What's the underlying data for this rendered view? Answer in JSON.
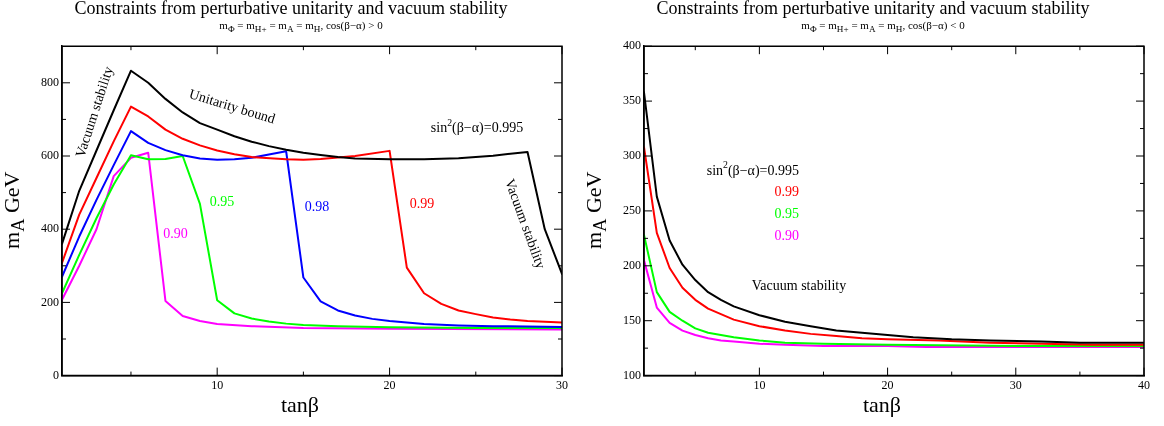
{
  "chart_data": [
    {
      "type": "line",
      "title": "Constraints from perturbative unitarity and vacuum stability",
      "subtitle": "m$_{Φ}$ = m$_{H+}$ = m$_{A}$ = m$_{H}$,  cos(β−α) > 0",
      "xlabel": "tanβ",
      "ylabel": "m$_{A}$ GeV",
      "xlim": [
        1,
        30
      ],
      "xticks": [
        {
          "value": 5,
          "label": null
        },
        10,
        {
          "value": 15,
          "label": null
        },
        20,
        {
          "value": 25,
          "label": null
        },
        30
      ],
      "ylim": [
        0,
        900
      ],
      "yticks": [
        0,
        {
          "value": 100,
          "label": null
        },
        200,
        {
          "value": 300,
          "label": null
        },
        400,
        {
          "value": 500,
          "label": null
        },
        600,
        {
          "value": 700,
          "label": null
        },
        800
      ],
      "annotations": [
        "Vacuum stability",
        "Unitarity bound",
        "Vacuum stability"
      ],
      "series": [
        {
          "name": "sin$^{2}$(β−α)=0.995",
          "color": "#000000",
          "x": [
            1,
            2,
            3,
            4,
            5,
            6,
            7,
            8,
            9,
            10,
            11,
            12,
            13,
            14,
            15,
            16,
            17,
            18,
            20,
            22,
            24,
            26,
            28,
            29,
            30
          ],
          "values": [
            360,
            505,
            615,
            725,
            833,
            800,
            756,
            719,
            690,
            672,
            654,
            639,
            627,
            617,
            609,
            603,
            597,
            593,
            591,
            591,
            594,
            601,
            611,
            400,
            278
          ]
        },
        {
          "name": "0.99",
          "color": "#ff0000",
          "x": [
            1,
            2,
            3,
            4,
            5,
            6,
            7,
            8,
            9,
            10,
            11,
            12,
            14,
            15,
            16,
            18,
            20,
            21,
            22,
            23,
            24,
            25,
            26,
            27,
            28,
            30
          ],
          "values": [
            308,
            440,
            540,
            640,
            735,
            708,
            672,
            647,
            629,
            615,
            605,
            597,
            591,
            590,
            592,
            600,
            614,
            295,
            225,
            196,
            178,
            168,
            159,
            153,
            149,
            145
          ]
        },
        {
          "name": "0.98",
          "color": "#0000ff",
          "x": [
            1,
            2,
            3,
            4,
            5,
            6,
            7,
            8,
            9,
            10,
            11,
            12,
            13,
            14,
            15,
            16,
            17,
            18,
            19,
            20,
            22,
            24,
            26,
            30
          ],
          "values": [
            270,
            380,
            480,
            575,
            668,
            636,
            616,
            602,
            593,
            590,
            591,
            595,
            604,
            613,
            268,
            203,
            178,
            164,
            155,
            149,
            141,
            137,
            135,
            133
          ]
        },
        {
          "name": "0.95",
          "color": "#00ff00",
          "x": [
            1,
            2,
            3,
            4,
            5,
            6,
            7,
            8,
            9,
            10,
            11,
            12,
            13,
            14,
            15,
            17,
            20,
            25,
            30
          ],
          "values": [
            225,
            330,
            430,
            522,
            602,
            591,
            592,
            600,
            469,
            206,
            170,
            156,
            148,
            142,
            138,
            135,
            132,
            130,
            130
          ]
        },
        {
          "name": "0.90",
          "color": "#ff00ff",
          "x": [
            1,
            2,
            3,
            4,
            5,
            6,
            7,
            8,
            9,
            10,
            12,
            15,
            20,
            30
          ],
          "values": [
            207,
            300,
            400,
            545,
            595,
            609,
            204,
            163,
            149,
            141,
            135,
            130,
            128,
            126
          ]
        }
      ]
    },
    {
      "type": "line",
      "title": "Constraints from perturbative unitarity and vacuum stability",
      "subtitle": "m$_{Φ}$ = m$_{H+}$ = m$_{A}$ = m$_{H}$,  cos(β−α) < 0",
      "xlabel": "tanβ",
      "ylabel": "m$_{A}$ GeV",
      "xlim": [
        1,
        40
      ],
      "xticks": [
        {
          "value": 5,
          "label": null
        },
        10,
        {
          "value": 15,
          "label": null
        },
        20,
        {
          "value": 25,
          "label": null
        },
        30,
        {
          "value": 35,
          "label": null
        },
        40
      ],
      "ylim": [
        100,
        400
      ],
      "yticks": [
        100,
        {
          "value": 125,
          "label": null
        },
        150,
        {
          "value": 175,
          "label": null
        },
        200,
        {
          "value": 225,
          "label": null
        },
        250,
        {
          "value": 275,
          "label": null
        },
        300,
        {
          "value": 325,
          "label": null
        },
        350,
        {
          "value": 375,
          "label": null
        },
        400
      ],
      "annotations": [
        "Vacuum stability"
      ],
      "series": [
        {
          "name": "sin$^{2}$(β−α)=0.995",
          "color": "#000000",
          "x": [
            1,
            2,
            3,
            4,
            5,
            6,
            7,
            8,
            10,
            12,
            14,
            16,
            18,
            20,
            22,
            25,
            28,
            32,
            35,
            40
          ],
          "values": [
            358,
            263,
            223,
            201,
            187,
            176,
            169,
            163,
            155,
            149,
            145,
            141,
            139,
            137,
            135,
            133,
            132,
            131,
            130,
            130
          ]
        },
        {
          "name": "0.99",
          "color": "#ff0000",
          "x": [
            1,
            2,
            3,
            4,
            5,
            6,
            7,
            8,
            10,
            12,
            14,
            16,
            18,
            20,
            24,
            28,
            32,
            36,
            40
          ],
          "values": [
            308,
            230,
            198,
            180,
            169,
            161,
            156,
            151,
            145,
            141,
            138,
            136,
            134,
            133,
            132,
            130,
            129,
            128,
            128
          ]
        },
        {
          "name": "0.95",
          "color": "#00ff00",
          "x": [
            1,
            2,
            3,
            4,
            5,
            6,
            8,
            10,
            12,
            15,
            20,
            30,
            40
          ],
          "values": [
            228,
            176,
            158,
            150,
            143,
            139,
            135,
            132,
            130,
            129,
            128,
            127,
            127
          ]
        },
        {
          "name": "0.90",
          "color": "#ff00ff",
          "x": [
            1,
            2,
            3,
            4,
            5,
            6,
            7,
            8,
            10,
            12,
            15,
            20,
            23,
            30,
            40
          ],
          "values": [
            205,
            162,
            148,
            141,
            137,
            134,
            132,
            131,
            129,
            128,
            127,
            127,
            126,
            126,
            126
          ]
        }
      ]
    }
  ]
}
